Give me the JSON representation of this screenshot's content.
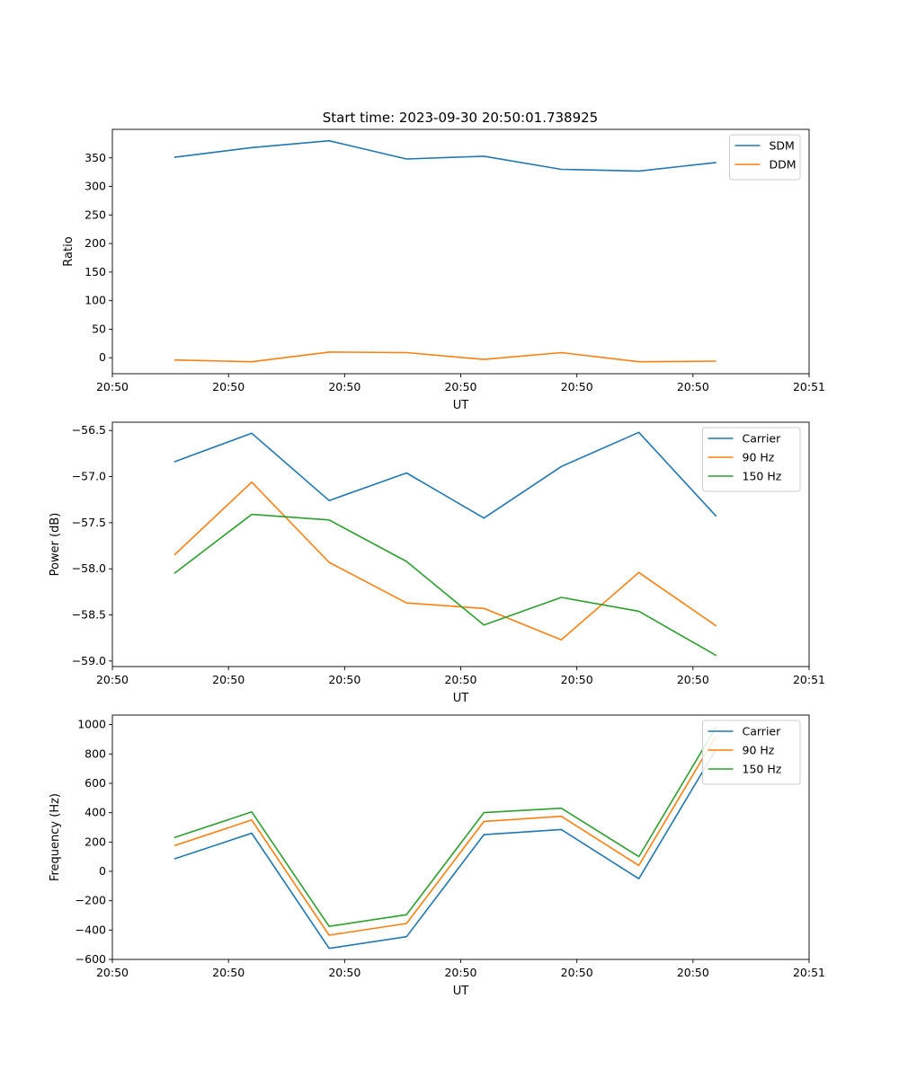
{
  "figure_title": "Start time: 2023-09-30 20:50:01.738925",
  "colors": {
    "blue": "#1f77b4",
    "orange": "#ff7f0e",
    "green": "#2ca02c"
  },
  "chart_data": [
    {
      "type": "line",
      "title": "Start time: 2023-09-30 20:50:01.738925",
      "xlabel": "UT",
      "ylabel": "Ratio",
      "x": [
        1,
        2,
        3,
        4,
        5,
        6,
        7,
        8
      ],
      "xlim": [
        0.2,
        9.2
      ],
      "xticks": [
        {
          "v": 0.2,
          "label": "20:50"
        },
        {
          "v": 1.7,
          "label": "20:50"
        },
        {
          "v": 3.2,
          "label": "20:50"
        },
        {
          "v": 4.7,
          "label": "20:50"
        },
        {
          "v": 6.2,
          "label": "20:50"
        },
        {
          "v": 7.7,
          "label": "20:50"
        },
        {
          "v": 9.2,
          "label": "20:51"
        }
      ],
      "ylim": [
        -28,
        400
      ],
      "yticks": [
        0,
        50,
        100,
        150,
        200,
        250,
        300,
        350
      ],
      "ytick_labels": [
        "0",
        "50",
        "100",
        "150",
        "200",
        "250",
        "300",
        "350"
      ],
      "legend_position": "top-right",
      "series": [
        {
          "name": "SDM",
          "color": "#1f77b4",
          "values": [
            351,
            368,
            380,
            348,
            353,
            330,
            327,
            342
          ]
        },
        {
          "name": "DDM",
          "color": "#ff7f0e",
          "values": [
            -4,
            -7,
            10,
            9,
            -3,
            9,
            -7,
            -6
          ]
        }
      ]
    },
    {
      "type": "line",
      "title": "",
      "xlabel": "UT",
      "ylabel": "Power (dB)",
      "x": [
        1,
        2,
        3,
        4,
        5,
        6,
        7,
        8
      ],
      "xlim": [
        0.2,
        9.2
      ],
      "xticks": [
        {
          "v": 0.2,
          "label": "20:50"
        },
        {
          "v": 1.7,
          "label": "20:50"
        },
        {
          "v": 3.2,
          "label": "20:50"
        },
        {
          "v": 4.7,
          "label": "20:50"
        },
        {
          "v": 6.2,
          "label": "20:50"
        },
        {
          "v": 7.7,
          "label": "20:50"
        },
        {
          "v": 9.2,
          "label": "20:51"
        }
      ],
      "ylim": [
        -59.06,
        -56.41
      ],
      "yticks": [
        -59.0,
        -58.5,
        -58.0,
        -57.5,
        -57.0,
        -56.5
      ],
      "ytick_labels": [
        "−59.0",
        "−58.5",
        "−58.0",
        "−57.5",
        "−57.0",
        "−56.5"
      ],
      "legend_position": "top-right",
      "series": [
        {
          "name": "Carrier",
          "color": "#1f77b4",
          "values": [
            -56.84,
            -56.53,
            -57.26,
            -56.96,
            -57.45,
            -56.89,
            -56.52,
            -57.43
          ]
        },
        {
          "name": "90 Hz",
          "color": "#ff7f0e",
          "values": [
            -57.85,
            -57.06,
            -57.93,
            -58.37,
            -58.43,
            -58.77,
            -58.04,
            -58.62
          ]
        },
        {
          "name": "150 Hz",
          "color": "#2ca02c",
          "values": [
            -58.05,
            -57.41,
            -57.47,
            -57.92,
            -58.61,
            -58.31,
            -58.46,
            -58.94
          ]
        }
      ]
    },
    {
      "type": "line",
      "title": "",
      "xlabel": "UT",
      "ylabel": "Frequency (Hz)",
      "x": [
        1,
        2,
        3,
        4,
        5,
        6,
        7,
        8
      ],
      "xlim": [
        0.2,
        9.2
      ],
      "xticks": [
        {
          "v": 0.2,
          "label": "20:50"
        },
        {
          "v": 1.7,
          "label": "20:50"
        },
        {
          "v": 3.2,
          "label": "20:50"
        },
        {
          "v": 4.7,
          "label": "20:50"
        },
        {
          "v": 6.2,
          "label": "20:50"
        },
        {
          "v": 7.7,
          "label": "20:50"
        },
        {
          "v": 9.2,
          "label": "20:51"
        }
      ],
      "ylim": [
        -600,
        1065
      ],
      "yticks": [
        -600,
        -400,
        -200,
        0,
        200,
        400,
        600,
        800,
        1000
      ],
      "ytick_labels": [
        "−600",
        "−400",
        "−200",
        "0",
        "200",
        "400",
        "600",
        "800",
        "1000"
      ],
      "legend_position": "top-right",
      "series": [
        {
          "name": "Carrier",
          "color": "#1f77b4",
          "values": [
            85,
            260,
            -525,
            -445,
            250,
            285,
            -50,
            835
          ]
        },
        {
          "name": "90 Hz",
          "color": "#ff7f0e",
          "values": [
            175,
            350,
            -435,
            -355,
            340,
            375,
            40,
            925
          ]
        },
        {
          "name": "150 Hz",
          "color": "#2ca02c",
          "values": [
            230,
            405,
            -375,
            -295,
            400,
            430,
            100,
            985
          ]
        }
      ]
    }
  ]
}
